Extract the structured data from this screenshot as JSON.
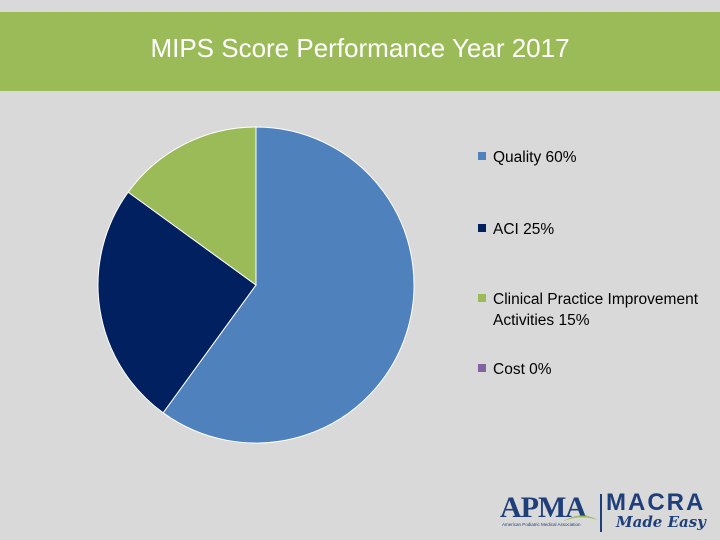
{
  "header": {
    "title": "MIPS Score Performance Year 2017"
  },
  "chart_data": {
    "type": "pie",
    "title": "MIPS Score Performance Year 2017",
    "categories": [
      "Quality",
      "ACI",
      "Clinical Practice Improvement Activities",
      "Cost"
    ],
    "values": [
      60,
      25,
      15,
      0
    ],
    "unit": "%",
    "colors": [
      "#4f81bd",
      "#002060",
      "#9bbb59",
      "#8064a2"
    ],
    "legend": {
      "position": "right",
      "items": [
        "Quality 60%",
        "ACI 25%",
        "Clinical Practice Improvement Activities 15%",
        "Cost 0%"
      ]
    }
  },
  "logo": {
    "apma": "APMA",
    "apma_subtitle": "American Podiatric Medical Association",
    "macra": "MACRA",
    "made_easy": "Made Easy",
    "color": "#1f3f7a",
    "accent": "#9bbb59"
  }
}
